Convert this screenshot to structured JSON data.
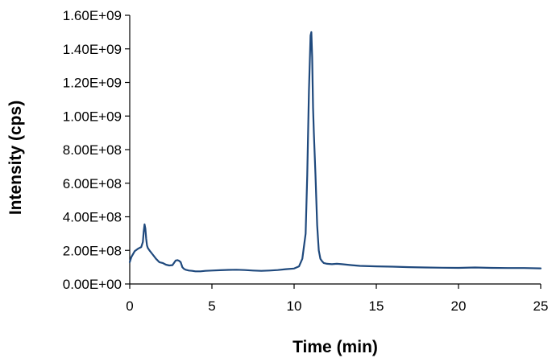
{
  "chart_data": {
    "type": "line",
    "xlabel": "Time (min)",
    "ylabel": "Intensity (cps)",
    "xlim": [
      0,
      25
    ],
    "ylim": [
      0,
      1600000000
    ],
    "x_ticks": [
      0,
      5,
      10,
      15,
      20,
      25
    ],
    "x_tick_labels": [
      "0",
      "5",
      "10",
      "15",
      "20",
      "25"
    ],
    "y_ticks": [
      0,
      200000000,
      400000000,
      600000000,
      800000000,
      1000000000,
      1200000000,
      1400000000,
      1600000000
    ],
    "y_tick_labels": [
      "0.00E+00",
      "2.00E+08",
      "4.00E+08",
      "6.00E+08",
      "8.00E+08",
      "1.00E+09",
      "1.20E+09",
      "1.40E+09",
      "1.60E+09"
    ],
    "grid": false,
    "legend": "none",
    "colors": {
      "series": "#1f497d"
    },
    "series": [
      {
        "x": [
          0,
          0.1,
          0.3,
          0.5,
          0.7,
          0.8,
          0.85,
          0.9,
          0.95,
          1.0,
          1.05,
          1.1,
          1.2,
          1.4,
          1.6,
          1.8,
          2.0,
          2.2,
          2.4,
          2.6,
          2.8,
          2.9,
          3.0,
          3.1,
          3.2,
          3.3,
          3.4,
          3.6,
          3.8,
          4.0,
          4.3,
          4.6,
          5.0,
          5.5,
          6.0,
          6.5,
          7.0,
          7.5,
          8.0,
          8.5,
          9.0,
          9.5,
          10.0,
          10.3,
          10.5,
          10.7,
          10.8,
          10.9,
          11.0,
          11.05,
          11.1,
          11.15,
          11.2,
          11.3,
          11.4,
          11.5,
          11.6,
          11.7,
          11.8,
          12.0,
          12.3,
          12.6,
          12.9,
          13.2,
          13.5,
          14.0,
          15.0,
          16.0,
          17.0,
          18.0,
          19.0,
          20.0,
          21.0,
          22.0,
          23.0,
          24.0,
          25.0
        ],
        "y": [
          130000000,
          160000000,
          195000000,
          210000000,
          220000000,
          250000000,
          310000000,
          355000000,
          330000000,
          270000000,
          230000000,
          215000000,
          200000000,
          175000000,
          150000000,
          130000000,
          125000000,
          115000000,
          110000000,
          112000000,
          140000000,
          142000000,
          138000000,
          130000000,
          100000000,
          90000000,
          85000000,
          80000000,
          78000000,
          75000000,
          75000000,
          78000000,
          80000000,
          82000000,
          84000000,
          85000000,
          83000000,
          80000000,
          78000000,
          80000000,
          83000000,
          88000000,
          92000000,
          105000000,
          150000000,
          300000000,
          650000000,
          1150000000,
          1480000000,
          1500000000,
          1350000000,
          1050000000,
          900000000,
          650000000,
          350000000,
          200000000,
          150000000,
          135000000,
          125000000,
          120000000,
          118000000,
          120000000,
          118000000,
          115000000,
          112000000,
          108000000,
          105000000,
          103000000,
          100000000,
          98000000,
          97000000,
          96000000,
          98000000,
          96000000,
          95000000,
          95000000,
          93000000
        ]
      }
    ]
  }
}
